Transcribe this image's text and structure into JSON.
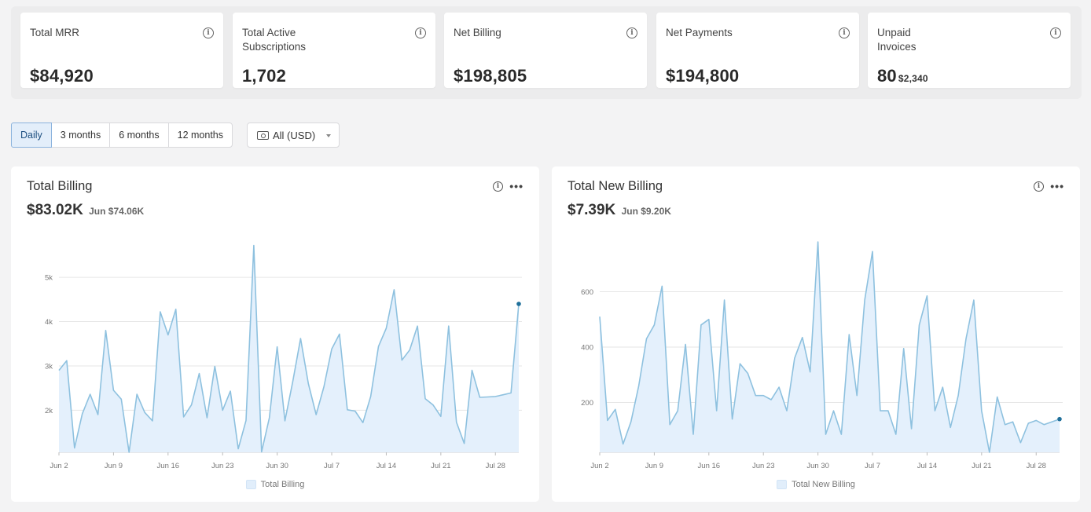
{
  "kpis": [
    {
      "title": "Total MRR",
      "value": "$84,920",
      "sub": ""
    },
    {
      "title": "Total Active Subscriptions",
      "value": "1,702",
      "sub": ""
    },
    {
      "title": "Net Billing",
      "value": "$198,805",
      "sub": ""
    },
    {
      "title": "Net Payments",
      "value": "$194,800",
      "sub": ""
    },
    {
      "title": "Unpaid Invoices",
      "value": "80",
      "sub": "$2,340"
    }
  ],
  "periods": [
    {
      "label": "Daily",
      "active": true
    },
    {
      "label": "3 months",
      "active": false
    },
    {
      "label": "6 months",
      "active": false
    },
    {
      "label": "12 months",
      "active": false
    }
  ],
  "currency": {
    "label": "All (USD)"
  },
  "icons": {
    "info": "info-icon",
    "more": "more-icon",
    "cash": "cash-icon",
    "caret": "caret-down-icon"
  },
  "colors": {
    "line": "#8ec1df",
    "fill": "#e4f0fc",
    "grid": "#e6e6e6",
    "accent": "#1f6f9a"
  },
  "chart_data": [
    {
      "type": "area",
      "title": "Total Billing",
      "value": "$83.02K",
      "comparison": "Jun $74.06K",
      "legend": "Total Billing",
      "x_start": "2024-06-02",
      "x_ticks": [
        "Jun 2",
        "Jun 9",
        "Jun 16",
        "Jun 23",
        "Jun 30",
        "Jul 7",
        "Jul 14",
        "Jul 21",
        "Jul 28"
      ],
      "y_ticks": [
        "2k",
        "3k",
        "4k",
        "5k"
      ],
      "y_tick_values": [
        2000,
        3000,
        4000,
        5000
      ],
      "ylim": [
        1050,
        5800
      ],
      "values": [
        2900,
        3120,
        1150,
        1920,
        2360,
        1900,
        3800,
        2450,
        2250,
        1050,
        2360,
        1950,
        1760,
        4220,
        3700,
        4280,
        1850,
        2120,
        2830,
        1830,
        2990,
        2000,
        2430,
        1130,
        1770,
        5720,
        1060,
        1830,
        3430,
        1760,
        2650,
        3620,
        2600,
        1900,
        2530,
        3380,
        3720,
        2010,
        1980,
        1720,
        2310,
        3440,
        3850,
        4720,
        3130,
        3360,
        3900,
        2260,
        2120,
        1860,
        3900,
        1730,
        1250,
        2900,
        2290,
        2300,
        2310,
        2350,
        2390,
        4400
      ],
      "grid": true,
      "legend_position": "bottom"
    },
    {
      "type": "area",
      "title": "Total New Billing",
      "value": "$7.39K",
      "comparison": "Jun $9.20K",
      "legend": "Total New Billing",
      "x_start": "2024-06-02",
      "x_ticks": [
        "Jun 2",
        "Jun 9",
        "Jun 16",
        "Jun 23",
        "Jun 30",
        "Jul 7",
        "Jul 14",
        "Jul 21",
        "Jul 28"
      ],
      "y_ticks": [
        "200",
        "400",
        "600"
      ],
      "y_tick_values": [
        200,
        400,
        600
      ],
      "ylim": [
        20,
        780
      ],
      "values": [
        510,
        135,
        175,
        50,
        130,
        260,
        430,
        480,
        620,
        120,
        170,
        410,
        85,
        480,
        500,
        170,
        570,
        140,
        340,
        305,
        225,
        225,
        210,
        255,
        170,
        360,
        435,
        310,
        780,
        85,
        170,
        85,
        445,
        225,
        570,
        745,
        170,
        170,
        85,
        395,
        105,
        480,
        585,
        170,
        255,
        110,
        225,
        430,
        570,
        170,
        20,
        220,
        120,
        130,
        55,
        125,
        135,
        120,
        130,
        140
      ],
      "grid": true,
      "legend_position": "bottom"
    }
  ]
}
